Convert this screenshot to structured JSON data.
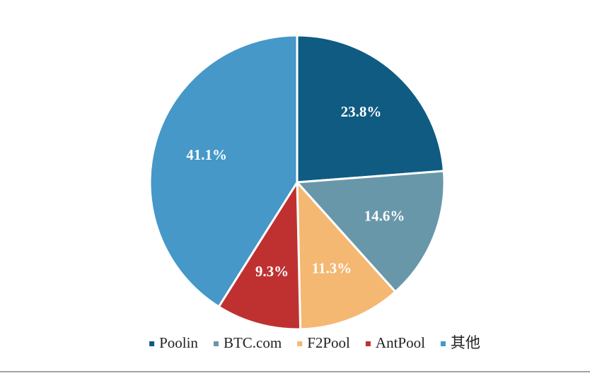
{
  "chart_data": {
    "type": "pie",
    "categories": [
      "Poolin",
      "BTC.com",
      "F2Pool",
      "AntPool",
      "其他"
    ],
    "values": [
      23.8,
      14.6,
      11.3,
      9.3,
      41.1
    ],
    "value_labels": [
      "23.8%",
      "14.6%",
      "11.3%",
      "9.3%",
      "41.1%"
    ],
    "colors": [
      "#0f5b82",
      "#6897a9",
      "#f4b872",
      "#bf3131",
      "#4598c8"
    ],
    "legend": "bottom"
  }
}
